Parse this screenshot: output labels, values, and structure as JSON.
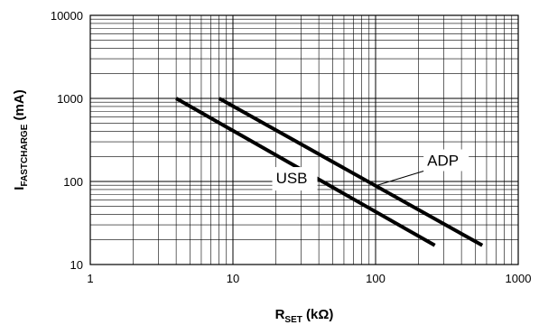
{
  "chart_data": {
    "type": "line",
    "xscale": "log",
    "yscale": "log",
    "xlim": [
      1,
      1000
    ],
    "ylim": [
      10,
      10000
    ],
    "grid": true,
    "xlabel": {
      "main": "R",
      "sub": "SET",
      "unit": " (kΩ)"
    },
    "ylabel": {
      "main": "I",
      "sub": "FASTCHARGE",
      "unit": " (mA)"
    },
    "x_ticks": [
      1,
      10,
      100,
      1000
    ],
    "x_tick_labels": [
      "1",
      "10",
      "100",
      "1000"
    ],
    "y_ticks": [
      10,
      100,
      1000,
      10000
    ],
    "y_tick_labels": [
      "10",
      "100",
      "1000",
      "10000"
    ],
    "series": [
      {
        "name": "USB",
        "x": [
          4,
          260
        ],
        "y": [
          1000,
          17
        ]
      },
      {
        "name": "ADP",
        "x": [
          8,
          560
        ],
        "y": [
          1000,
          17
        ]
      }
    ],
    "annotations": [
      {
        "text": "USB",
        "series": "USB"
      },
      {
        "text": "ADP",
        "series": "ADP"
      }
    ]
  }
}
